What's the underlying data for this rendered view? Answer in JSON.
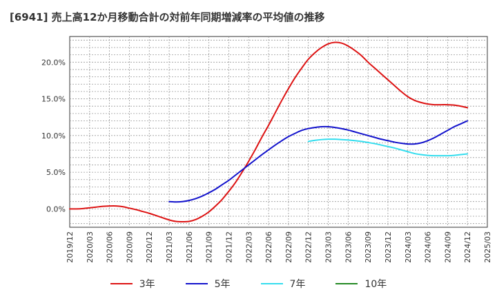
{
  "title": "[6941]  売上高12か月移動合計の対前年同期増減率の平均値の推移",
  "chart_data": {
    "type": "line",
    "title": "[6941]  売上高12か月移動合計の対前年同期増減率の平均値の推移",
    "xlabel": "",
    "ylabel": "",
    "x_ticks": [
      "2019/12",
      "2020/03",
      "2020/06",
      "2020/09",
      "2020/12",
      "2021/03",
      "2021/06",
      "2021/09",
      "2021/12",
      "2022/03",
      "2022/06",
      "2022/09",
      "2022/12",
      "2023/03",
      "2023/06",
      "2023/09",
      "2023/12",
      "2024/03",
      "2024/06",
      "2024/09",
      "2024/12",
      "2025/03"
    ],
    "y_ticks": [
      "0.0%",
      "5.0%",
      "10.0%",
      "15.0%",
      "20.0%"
    ],
    "y_tick_values": [
      0,
      5,
      10,
      15,
      20
    ],
    "ylim": [
      -2.5,
      23.5
    ],
    "grid": true,
    "legend_position": "bottom",
    "series": [
      {
        "name": "3年",
        "color": "#dd1111",
        "x": [
          "2019/12",
          "2020/01",
          "2020/02",
          "2020/03",
          "2020/04",
          "2020/05",
          "2020/06",
          "2020/07",
          "2020/08",
          "2020/09",
          "2020/10",
          "2020/11",
          "2020/12",
          "2021/01",
          "2021/02",
          "2021/03",
          "2021/04",
          "2021/05",
          "2021/06",
          "2021/07",
          "2021/08",
          "2021/09",
          "2021/10",
          "2021/11",
          "2021/12",
          "2022/01",
          "2022/02",
          "2022/03",
          "2022/04",
          "2022/05",
          "2022/06",
          "2022/07",
          "2022/08",
          "2022/09",
          "2022/10",
          "2022/11",
          "2022/12",
          "2023/01",
          "2023/02",
          "2023/03",
          "2023/04",
          "2023/05",
          "2023/06",
          "2023/07",
          "2023/08",
          "2023/09",
          "2023/10",
          "2023/11",
          "2023/12",
          "2024/01",
          "2024/02",
          "2024/03",
          "2024/04",
          "2024/05",
          "2024/06",
          "2024/07",
          "2024/08",
          "2024/09",
          "2024/10",
          "2024/11",
          "2024/12"
        ],
        "values": [
          0.0,
          0.0,
          0.05,
          0.15,
          0.25,
          0.35,
          0.4,
          0.4,
          0.3,
          0.1,
          -0.1,
          -0.35,
          -0.6,
          -0.9,
          -1.2,
          -1.5,
          -1.7,
          -1.75,
          -1.7,
          -1.45,
          -1.0,
          -0.4,
          0.4,
          1.3,
          2.4,
          3.6,
          5.0,
          6.5,
          8.1,
          9.8,
          11.4,
          13.1,
          14.8,
          16.4,
          17.9,
          19.2,
          20.4,
          21.3,
          22.0,
          22.5,
          22.7,
          22.6,
          22.2,
          21.6,
          20.9,
          20.0,
          19.2,
          18.4,
          17.6,
          16.8,
          16.0,
          15.3,
          14.8,
          14.5,
          14.3,
          14.2,
          14.2,
          14.2,
          14.15,
          14.0,
          13.8
        ]
      },
      {
        "name": "5年",
        "color": "#1111cc",
        "x": [
          "2021/03",
          "2021/04",
          "2021/05",
          "2021/06",
          "2021/07",
          "2021/08",
          "2021/09",
          "2021/10",
          "2021/11",
          "2021/12",
          "2022/01",
          "2022/02",
          "2022/03",
          "2022/04",
          "2022/05",
          "2022/06",
          "2022/07",
          "2022/08",
          "2022/09",
          "2022/10",
          "2022/11",
          "2022/12",
          "2023/01",
          "2023/02",
          "2023/03",
          "2023/04",
          "2023/05",
          "2023/06",
          "2023/07",
          "2023/08",
          "2023/09",
          "2023/10",
          "2023/11",
          "2023/12",
          "2024/01",
          "2024/02",
          "2024/03",
          "2024/04",
          "2024/05",
          "2024/06",
          "2024/07",
          "2024/08",
          "2024/09",
          "2024/10",
          "2024/11",
          "2024/12"
        ],
        "values": [
          1.0,
          0.95,
          1.0,
          1.15,
          1.4,
          1.75,
          2.2,
          2.7,
          3.3,
          3.9,
          4.6,
          5.3,
          6.0,
          6.7,
          7.4,
          8.05,
          8.7,
          9.3,
          9.85,
          10.3,
          10.7,
          10.95,
          11.1,
          11.2,
          11.2,
          11.1,
          10.95,
          10.75,
          10.5,
          10.25,
          10.0,
          9.75,
          9.5,
          9.3,
          9.1,
          8.95,
          8.85,
          8.85,
          9.0,
          9.3,
          9.7,
          10.2,
          10.7,
          11.2,
          11.6,
          12.0
        ]
      },
      {
        "name": "7年",
        "color": "#33ddee",
        "x": [
          "2022/12",
          "2023/01",
          "2023/02",
          "2023/03",
          "2023/04",
          "2023/05",
          "2023/06",
          "2023/07",
          "2023/08",
          "2023/09",
          "2023/10",
          "2023/11",
          "2023/12",
          "2024/01",
          "2024/02",
          "2024/03",
          "2024/04",
          "2024/05",
          "2024/06",
          "2024/07",
          "2024/08",
          "2024/09",
          "2024/10",
          "2024/11",
          "2024/12"
        ],
        "values": [
          9.2,
          9.35,
          9.45,
          9.5,
          9.5,
          9.45,
          9.4,
          9.3,
          9.2,
          9.05,
          8.9,
          8.7,
          8.5,
          8.3,
          8.05,
          7.8,
          7.55,
          7.4,
          7.3,
          7.25,
          7.25,
          7.25,
          7.3,
          7.4,
          7.5
        ]
      },
      {
        "name": "10年",
        "color": "#228822",
        "x": [],
        "values": []
      }
    ]
  }
}
